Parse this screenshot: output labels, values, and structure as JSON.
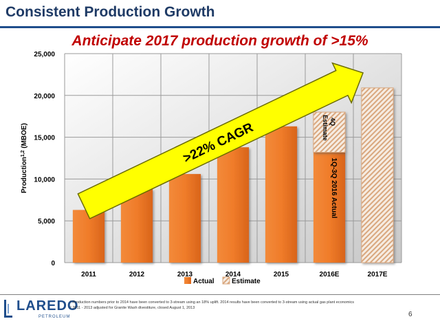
{
  "slide": {
    "title": "Consistent Production Growth",
    "subtitle": "Anticipate 2017 production growth of >15%",
    "page_number": "6"
  },
  "footnotes": [
    "¹ Production numbers prior to 2014 have been converted to 3-stream using an 18% uplift. 2014 results have been converted to 3-stream using actual gas plant economics",
    "² 2011 - 2013 adjusted for Granite Wash divestiture, closed August 1, 2013"
  ],
  "logo": {
    "word": "LAREDO",
    "sub": "PETROLEUM"
  },
  "chart_data": {
    "type": "bar",
    "categories": [
      "2011",
      "2012",
      "2013",
      "2014",
      "2015",
      "2016E",
      "2017E"
    ],
    "ylabel": "Production",
    "ylabel_sup": "1,2",
    "ylabel_unit": "(MBOE)",
    "ylim": [
      0,
      25000
    ],
    "yticks": [
      0,
      5000,
      10000,
      15000,
      20000,
      25000
    ],
    "ytick_labels": [
      "0",
      "5,000",
      "10,000",
      "15,000",
      "20,000",
      "25,000"
    ],
    "grid": true,
    "legend_position": "bottom",
    "series": [
      {
        "name": "Actual",
        "values": [
          6300,
          8800,
          10600,
          13800,
          16300,
          13200,
          null
        ],
        "color": "#f07c2a"
      },
      {
        "name": "Estimate",
        "values": [
          null,
          null,
          null,
          null,
          null,
          4800,
          20900
        ],
        "color": "#e8cfb8"
      }
    ],
    "annotations": {
      "cagr": ">22% CAGR",
      "actual_2016": "1Q-3Q 2016 Actual",
      "estimate_4q_line1": "4Q",
      "estimate_4q_line2": "Estimate"
    },
    "colors": {
      "arrow": "#ffff00",
      "bar_actual": "#f07c2a",
      "grid": "#9a9a9a"
    }
  }
}
